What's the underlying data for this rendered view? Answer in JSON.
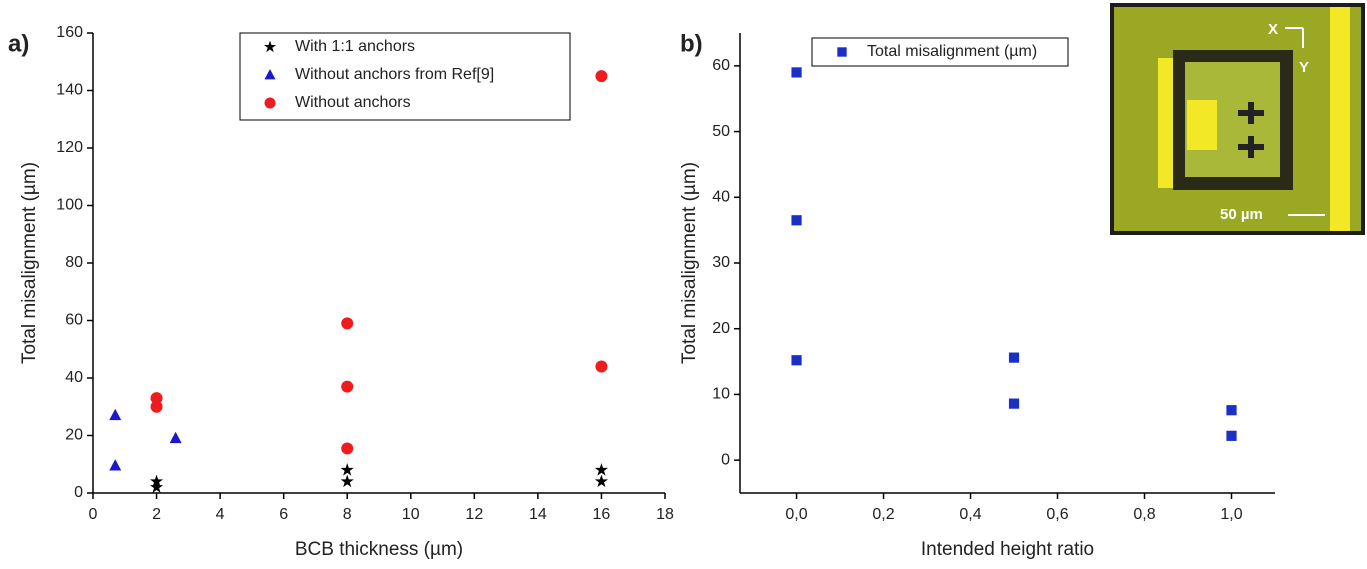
{
  "chart_data": [
    {
      "type": "scatter",
      "panel_label": "a)",
      "x_label": "BCB thickness (µm)",
      "y_label": "Total misalignment (µm)",
      "xlim": [
        0,
        18
      ],
      "xticks": [
        0,
        2,
        4,
        6,
        8,
        10,
        12,
        14,
        16,
        18
      ],
      "ylim": [
        0,
        160
      ],
      "yticks": [
        0,
        20,
        40,
        60,
        80,
        100,
        120,
        140,
        160
      ],
      "series": [
        {
          "name": "With 1:1 anchors",
          "color": "#000000",
          "marker": "star",
          "x": [
            2,
            2,
            8,
            8,
            16,
            16
          ],
          "values": [
            2,
            4,
            4,
            8,
            4,
            8
          ]
        },
        {
          "name": "Without anchors from Ref[9]",
          "color": "#1a1acc",
          "marker": "triangle",
          "x": [
            0.7,
            0.7,
            2.6
          ],
          "values": [
            27,
            9.5,
            19
          ]
        },
        {
          "name": "Without anchors",
          "color": "#ee1c1c",
          "marker": "circle",
          "x": [
            2,
            2,
            8,
            8,
            8,
            16,
            16
          ],
          "values": [
            33,
            30,
            59,
            37,
            15.5,
            145,
            44
          ]
        }
      ]
    },
    {
      "type": "scatter",
      "panel_label": "b)",
      "x_label": "Intended height ratio",
      "y_label": "Total misalignment (µm)",
      "xlim": [
        -0.13,
        1.1
      ],
      "xticks": [
        {
          "value": 0,
          "label": "0,0"
        },
        {
          "value": 0.2,
          "label": "0,2"
        },
        {
          "value": 0.4,
          "label": "0,4"
        },
        {
          "value": 0.6,
          "label": "0,6"
        },
        {
          "value": 0.8,
          "label": "0,8"
        },
        {
          "value": 1,
          "label": "1,0"
        }
      ],
      "ylim": [
        -5,
        65
      ],
      "yticks": [
        0,
        10,
        20,
        30,
        40,
        50,
        60
      ],
      "series": [
        {
          "name": "Total misalignment (µm)",
          "color": "#1a2fc4",
          "marker": "square",
          "x": [
            0,
            0,
            0,
            0.5,
            0.5,
            1,
            1
          ],
          "values": [
            59,
            36.5,
            15.2,
            15.6,
            8.6,
            7.6,
            3.7
          ]
        }
      ]
    }
  ],
  "inset": {
    "x_label": "X",
    "y_label": "Y",
    "scale_label": "50 µm"
  }
}
